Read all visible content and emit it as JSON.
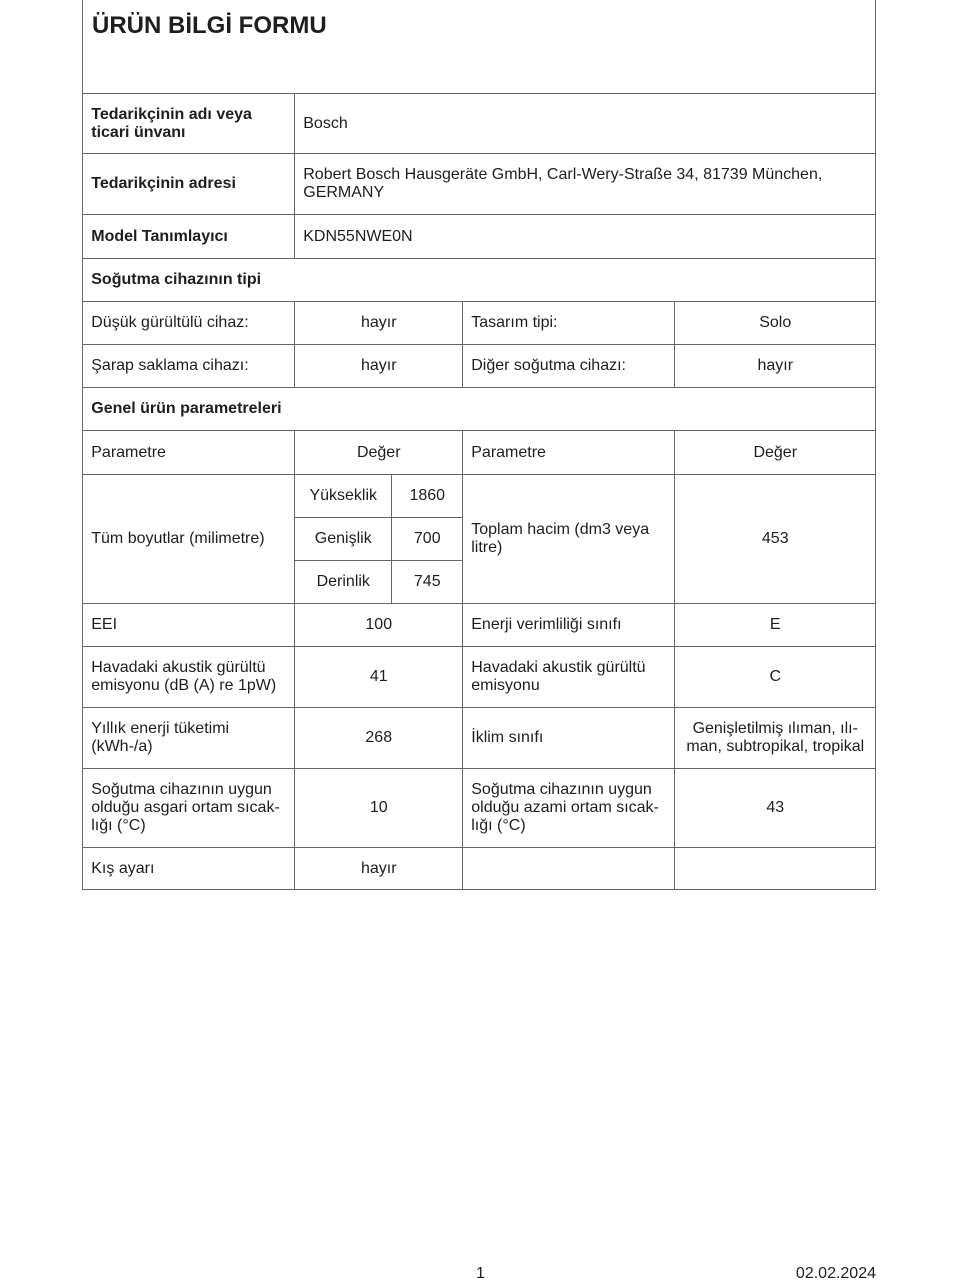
{
  "title": "ÜRÜN BİLGİ FORMU",
  "supplier_name_label": "Tedarikçinin adı veya ticari ünvanı",
  "supplier_name": "Bosch",
  "supplier_address_label": "Tedarikçinin adresi",
  "supplier_address": "Robert Bosch Hausgeräte GmbH, Carl-Wery-Straße 34, 81739 München, GERMANY",
  "model_label": "Model Tanımlayıcı",
  "model": "KDN55NWE0N",
  "type_section": "Soğutma cihazının tipi",
  "low_noise_label": "Düşük gürültülü cihaz:",
  "low_noise": "hayır",
  "design_label": "Tasarım tipi:",
  "design": "Solo",
  "wine_label": "Şarap saklama cihazı:",
  "wine": "hayır",
  "other_label": "Diğer soğutma cihazı:",
  "other": "hayır",
  "general_section": "Genel ürün parametreleri",
  "param_header": "Parametre",
  "value_header": "Değer",
  "dims_label": "Tüm boyutlar (milimetre)",
  "height_label": "Yükseklik",
  "height": "1860",
  "width_label": "Genişlik",
  "width": "700",
  "depth_label": "Derinlik",
  "depth": "745",
  "volume_label": "Toplam hacim (dm3 veya litre)",
  "volume": "453",
  "eei_label": "EEI",
  "eei": "100",
  "class_label": "Enerji verimliliği sınıfı",
  "class": "E",
  "noise_label": "Havadaki akustik gürültü emisyonu (dB (A) re 1pW)",
  "noise": "41",
  "noise_class_label": "Havadaki akustik gürültü emisyonu",
  "noise_class": "C",
  "energy_label": "Yıllık enerji tüketimi (kWh-/a)",
  "energy": "268",
  "climate_label": "İklim sınıfı",
  "climate": "Genişletilmiş ılıman, ılı-man, subtropikal, tropikal",
  "min_temp_label": "Soğutma cihazının uygun olduğu asgari ortam sıcak-lığı (°C)",
  "min_temp": "10",
  "max_temp_label": "Soğutma cihazının uygun olduğu azami ortam sıcak-lığı (°C)",
  "max_temp": "43",
  "winter_label": "Kış ayarı",
  "winter": "hayır",
  "page_number": "1",
  "date": "02.02.2024"
}
